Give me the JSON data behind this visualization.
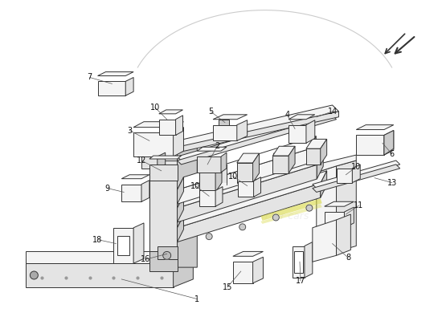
{
  "background_color": "#ffffff",
  "line_color": "#333333",
  "label_fontsize": 7,
  "fc_white": "#ffffff",
  "fc_light": "#f4f4f4",
  "fc_mid": "#e4e4e4",
  "fc_dark": "#cccccc",
  "fc_darker": "#bbbbbb",
  "yellow": "#e8e060",
  "watermark_color": "#dddddd"
}
